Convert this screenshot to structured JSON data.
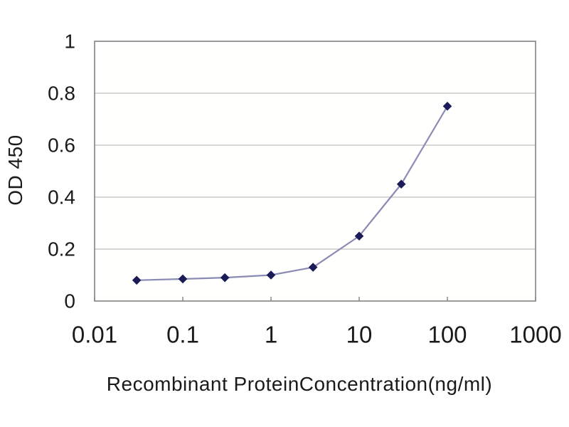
{
  "chart_data": {
    "type": "line",
    "x_scale": "log",
    "x": [
      0.03,
      0.1,
      0.3,
      1,
      3,
      10,
      30,
      100
    ],
    "values": [
      0.08,
      0.085,
      0.09,
      0.1,
      0.13,
      0.25,
      0.45,
      0.75
    ],
    "xlabel": "Recombinant ProteinConcentration(ng/ml)",
    "ylabel": "OD 450",
    "xlim": [
      0.01,
      1000
    ],
    "ylim": [
      0,
      1
    ],
    "x_tick_values": [
      0.01,
      0.1,
      1,
      10,
      100,
      1000
    ],
    "x_tick_labels": [
      "0.01",
      "0.1",
      "1",
      "10",
      "100",
      "1000"
    ],
    "y_tick_values": [
      0,
      0.2,
      0.4,
      0.6,
      0.8,
      1
    ],
    "y_tick_labels": [
      "0",
      "0.2",
      "0.4",
      "0.6",
      "0.8",
      "1"
    ],
    "grid": true,
    "legend": "none",
    "marker": "diamond",
    "colors": {
      "line": "#8a8ab4",
      "marker": "#1b1b58",
      "grid": "#bfbfbf",
      "axis": "#828282",
      "text": "#1a1a1a",
      "plot_bg": "#fffffe",
      "bg": "#ffffff"
    }
  }
}
